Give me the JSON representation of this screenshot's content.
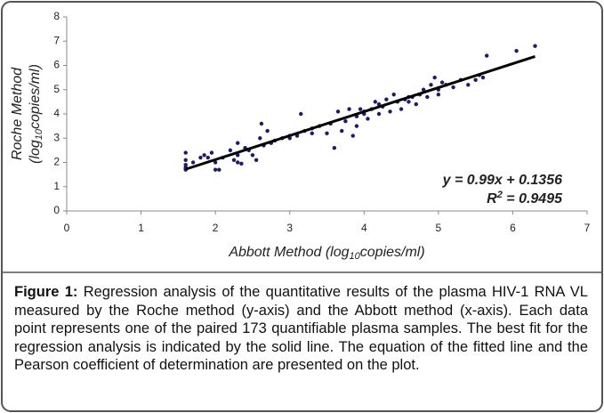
{
  "chart_data": {
    "type": "scatter",
    "x_label": [
      "Abbott Method  (log",
      "10",
      "copies/ml)"
    ],
    "y_label": [
      "Roche Method",
      "(log",
      "10",
      "copies/ml)"
    ],
    "xlim": [
      0,
      7
    ],
    "xticks": [
      0,
      1,
      2,
      3,
      4,
      5,
      6,
      7
    ],
    "ylim": [
      0,
      8
    ],
    "yticks": [
      0,
      1,
      2,
      3,
      4,
      5,
      6,
      7,
      8
    ],
    "grid": false,
    "series": [
      {
        "type": "scatter",
        "color": "#1c1c6b",
        "x": [
          1.6,
          1.6,
          1.6,
          1.6,
          1.6,
          1.6,
          1.7,
          1.8,
          1.85,
          1.9,
          1.95,
          2.0,
          2.0,
          2.05,
          2.1,
          2.2,
          2.25,
          2.3,
          2.3,
          2.35,
          2.3,
          2.4,
          2.45,
          2.5,
          2.55,
          2.6,
          2.62,
          2.65,
          2.7,
          2.75,
          2.8,
          2.9,
          3.0,
          3.1,
          3.15,
          3.2,
          3.3,
          3.4,
          3.5,
          3.55,
          3.6,
          3.65,
          3.7,
          3.75,
          3.8,
          3.85,
          3.9,
          3.9,
          3.95,
          4.0,
          4.05,
          4.1,
          4.15,
          4.2,
          4.25,
          4.3,
          4.35,
          4.4,
          4.45,
          4.5,
          4.55,
          4.6,
          4.65,
          4.7,
          4.75,
          4.8,
          4.85,
          4.9,
          4.95,
          5.0,
          5.0,
          5.05,
          5.1,
          5.2,
          5.3,
          5.4,
          5.5,
          5.55,
          5.6,
          5.65,
          6.05,
          6.3,
          3.0,
          3.3,
          4.0,
          4.2,
          4.6
        ],
        "y": [
          1.7,
          1.8,
          1.9,
          2.1,
          2.4,
          1.75,
          2.0,
          2.2,
          2.3,
          2.2,
          2.4,
          1.7,
          2.0,
          1.7,
          2.2,
          2.5,
          2.1,
          2.0,
          2.3,
          1.95,
          2.8,
          2.6,
          2.5,
          2.3,
          2.1,
          3.0,
          3.6,
          2.7,
          3.3,
          2.8,
          2.9,
          3.0,
          3.0,
          3.1,
          4.0,
          3.3,
          3.2,
          3.5,
          3.2,
          3.6,
          2.6,
          4.1,
          3.3,
          3.7,
          4.2,
          3.1,
          3.9,
          3.5,
          4.2,
          4.0,
          3.8,
          4.2,
          4.5,
          4.0,
          4.3,
          4.6,
          4.1,
          4.8,
          4.5,
          4.2,
          4.6,
          4.5,
          4.7,
          4.4,
          4.8,
          5.0,
          4.7,
          5.2,
          5.5,
          5.0,
          4.8,
          5.3,
          5.2,
          5.1,
          5.4,
          5.2,
          5.4,
          5.6,
          5.5,
          6.4,
          6.6,
          6.8,
          3.1,
          3.4,
          4.1,
          4.4,
          4.7
        ]
      },
      {
        "type": "line",
        "color": "#000000",
        "x": [
          1.6,
          6.3
        ],
        "y": [
          1.72,
          6.37
        ]
      }
    ],
    "annotations": {
      "equation": "y = 0.99x + 0.1356",
      "r2": [
        "R",
        "2",
        " = 0.9495"
      ]
    }
  },
  "caption": {
    "label": "Figure 1:",
    "text": " Regression analysis of the quantitative results of the plasma HIV-1 RNA VL measured by the Roche method (y-axis) and the Abbott method (x-axis). Each data point represents one of the paired 173 quantifiable plasma samples. The best fit for the regression analysis is indicated by the solid line. The equation of the fitted line and the Pearson coefficient of determination are presented on the plot."
  }
}
